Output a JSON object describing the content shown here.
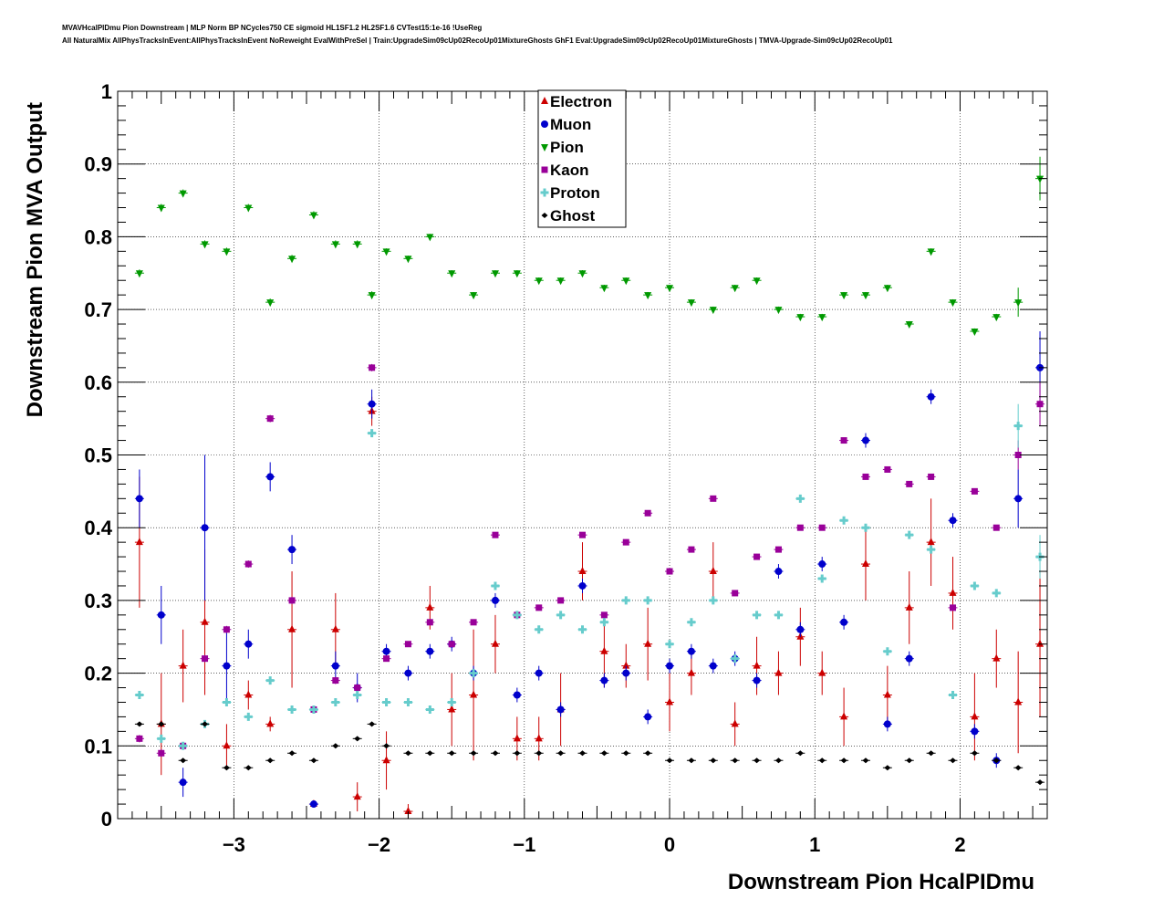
{
  "header": {
    "title_line1": "MVAVHcalPIDmu Pion Downstream | MLP Norm BP NCycles750 CE sigmoid HL1SF1.2 HL2SF1.6 CVTest15:1e-16 !UseReg",
    "title_line2": "All NaturalMix AllPhysTracksInEvent:AllPhysTracksInEvent NoReweight EvalWithPreSel | Train:UpgradeSim09cUp02RecoUp01MixtureGhosts GhF1 Eval:UpgradeSim09cUp02RecoUp01MixtureGhosts | TMVA-Upgrade-Sim09cUp02RecoUp01"
  },
  "chart_data": {
    "type": "scatter",
    "xlabel": "Downstream Pion HcalPIDmu",
    "ylabel": "Downstream Pion MVA Output",
    "xlim": [
      -3.8,
      2.6
    ],
    "ylim": [
      0,
      1
    ],
    "x_ticks": [
      -3,
      -2,
      -1,
      0,
      1,
      2
    ],
    "x_tick_labels": [
      "−3",
      "−2",
      "−1",
      "0",
      "1",
      "2"
    ],
    "y_ticks": [
      0,
      0.1,
      0.2,
      0.3,
      0.4,
      0.5,
      0.6,
      0.7,
      0.8,
      0.9,
      1
    ],
    "y_tick_labels": [
      "0",
      "0.1",
      "0.2",
      "0.3",
      "0.4",
      "0.5",
      "0.6",
      "0.7",
      "0.8",
      "0.9",
      "1"
    ],
    "grid": true,
    "legend_position": "top-center",
    "series": [
      {
        "name": "Electron",
        "color": "#cc0000",
        "marker": "triangle-up",
        "x": [
          -3.65,
          -3.5,
          -3.35,
          -3.2,
          -3.05,
          -2.9,
          -2.75,
          -2.6,
          -2.45,
          -2.3,
          -2.15,
          -2.05,
          -1.95,
          -1.8,
          -1.65,
          -1.5,
          -1.35,
          -1.2,
          -1.05,
          -0.9,
          -0.75,
          -0.6,
          -0.45,
          -0.3,
          -0.15,
          0,
          0.15,
          0.3,
          0.45,
          0.6,
          0.75,
          0.9,
          1.05,
          1.2,
          1.35,
          1.5,
          1.65,
          1.8,
          1.95,
          2.1,
          2.25,
          2.4,
          2.55
        ],
        "y": [
          0.38,
          0.13,
          0.21,
          0.27,
          0.1,
          0.17,
          0.13,
          0.26,
          0.02,
          0.26,
          0.03,
          0.56,
          0.08,
          0.01,
          0.29,
          0.15,
          0.17,
          0.24,
          0.11,
          0.11,
          0.15,
          0.34,
          0.23,
          0.21,
          0.24,
          0.16,
          0.2,
          0.34,
          0.13,
          0.21,
          0.2,
          0.25,
          0.2,
          0.14,
          0.35,
          0.17,
          0.29,
          0.38,
          0.31,
          0.14,
          0.22,
          0.16,
          0.24
        ],
        "err": [
          0.09,
          0.07,
          0.05,
          0.1,
          0.03,
          0.02,
          0.01,
          0.08,
          0.005,
          0.05,
          0.02,
          0.02,
          0.04,
          0.01,
          0.03,
          0.05,
          0.09,
          0.04,
          0.03,
          0.03,
          0.05,
          0.04,
          0.05,
          0.03,
          0.05,
          0.04,
          0.03,
          0.04,
          0.03,
          0.04,
          0.03,
          0.04,
          0.03,
          0.04,
          0.05,
          0.04,
          0.05,
          0.06,
          0.05,
          0.06,
          0.04,
          0.07,
          0.1
        ]
      },
      {
        "name": "Muon",
        "color": "#0000cc",
        "marker": "circle",
        "x": [
          -3.65,
          -3.5,
          -3.35,
          -3.2,
          -3.05,
          -2.9,
          -2.75,
          -2.6,
          -2.45,
          -2.3,
          -2.15,
          -2.05,
          -1.95,
          -1.8,
          -1.65,
          -1.5,
          -1.35,
          -1.2,
          -1.05,
          -0.9,
          -0.75,
          -0.6,
          -0.45,
          -0.3,
          -0.15,
          0,
          0.15,
          0.3,
          0.45,
          0.6,
          0.75,
          0.9,
          1.05,
          1.2,
          1.35,
          1.5,
          1.65,
          1.8,
          1.95,
          2.1,
          2.25,
          2.4,
          2.55
        ],
        "y": [
          0.44,
          0.28,
          0.05,
          0.4,
          0.21,
          0.24,
          0.47,
          0.37,
          0.02,
          0.21,
          0.18,
          0.57,
          0.23,
          0.2,
          0.23,
          0.24,
          0.2,
          0.3,
          0.17,
          0.2,
          0.15,
          0.32,
          0.19,
          0.2,
          0.14,
          0.21,
          0.23,
          0.21,
          0.22,
          0.19,
          0.34,
          0.26,
          0.35,
          0.27,
          0.52,
          0.13,
          0.22,
          0.58,
          0.41,
          0.12,
          0.08,
          0.44,
          0.62
        ],
        "err": [
          0.04,
          0.04,
          0.02,
          0.1,
          0.05,
          0.02,
          0.02,
          0.02,
          0.004,
          0.02,
          0.02,
          0.02,
          0.01,
          0.01,
          0.01,
          0.01,
          0.01,
          0.01,
          0.01,
          0.01,
          0.01,
          0.01,
          0.01,
          0.01,
          0.01,
          0.01,
          0.01,
          0.01,
          0.01,
          0.01,
          0.01,
          0.01,
          0.01,
          0.01,
          0.01,
          0.01,
          0.01,
          0.01,
          0.01,
          0.01,
          0.01,
          0.04,
          0.05
        ]
      },
      {
        "name": "Pion",
        "color": "#009900",
        "marker": "triangle-down",
        "x": [
          -3.65,
          -3.5,
          -3.35,
          -3.2,
          -3.05,
          -2.9,
          -2.75,
          -2.6,
          -2.45,
          -2.3,
          -2.15,
          -2.05,
          -1.95,
          -1.8,
          -1.65,
          -1.5,
          -1.35,
          -1.2,
          -1.05,
          -0.9,
          -0.75,
          -0.6,
          -0.45,
          -0.3,
          -0.15,
          0,
          0.15,
          0.3,
          0.45,
          0.6,
          0.75,
          0.9,
          1.05,
          1.2,
          1.35,
          1.5,
          1.65,
          1.8,
          1.95,
          2.1,
          2.25,
          2.4,
          2.55
        ],
        "y": [
          0.75,
          0.84,
          0.86,
          0.79,
          0.78,
          0.84,
          0.71,
          0.77,
          0.83,
          0.79,
          0.79,
          0.72,
          0.78,
          0.77,
          0.8,
          0.75,
          0.72,
          0.75,
          0.75,
          0.74,
          0.74,
          0.75,
          0.73,
          0.74,
          0.72,
          0.73,
          0.71,
          0.7,
          0.73,
          0.74,
          0.7,
          0.69,
          0.69,
          0.72,
          0.72,
          0.73,
          0.68,
          0.78,
          0.71,
          0.67,
          0.69,
          0.71,
          0.88
        ],
        "err": [
          0.005,
          0.005,
          0.005,
          0.005,
          0.005,
          0.005,
          0.005,
          0.005,
          0.005,
          0.005,
          0.005,
          0.005,
          0.004,
          0.004,
          0.004,
          0.004,
          0.004,
          0.004,
          0.004,
          0.004,
          0.004,
          0.004,
          0.004,
          0.004,
          0.004,
          0.004,
          0.004,
          0.004,
          0.004,
          0.004,
          0.004,
          0.004,
          0.004,
          0.004,
          0.004,
          0.004,
          0.004,
          0.004,
          0.004,
          0.004,
          0.004,
          0.02,
          0.03
        ]
      },
      {
        "name": "Kaon",
        "color": "#990099",
        "marker": "square",
        "x": [
          -3.65,
          -3.5,
          -3.35,
          -3.2,
          -3.05,
          -2.9,
          -2.75,
          -2.6,
          -2.45,
          -2.3,
          -2.15,
          -2.05,
          -1.95,
          -1.8,
          -1.65,
          -1.5,
          -1.35,
          -1.2,
          -1.05,
          -0.9,
          -0.75,
          -0.6,
          -0.45,
          -0.3,
          -0.15,
          0,
          0.15,
          0.3,
          0.45,
          0.6,
          0.75,
          0.9,
          1.05,
          1.2,
          1.35,
          1.5,
          1.65,
          1.8,
          1.95,
          2.1,
          2.25,
          2.4,
          2.55
        ],
        "y": [
          0.11,
          0.09,
          0.1,
          0.22,
          0.26,
          0.35,
          0.55,
          0.3,
          0.15,
          0.19,
          0.18,
          0.62,
          0.22,
          0.24,
          0.27,
          0.24,
          0.27,
          0.39,
          0.28,
          0.29,
          0.3,
          0.39,
          0.28,
          0.38,
          0.42,
          0.34,
          0.37,
          0.44,
          0.31,
          0.36,
          0.37,
          0.4,
          0.4,
          0.52,
          0.47,
          0.48,
          0.46,
          0.47,
          0.29,
          0.45,
          0.4,
          0.5,
          0.57
        ],
        "err": [
          0.005,
          0.005,
          0.005,
          0.005,
          0.005,
          0.005,
          0.005,
          0.005,
          0.005,
          0.005,
          0.005,
          0.005,
          0.004,
          0.004,
          0.004,
          0.004,
          0.004,
          0.004,
          0.004,
          0.004,
          0.004,
          0.004,
          0.004,
          0.004,
          0.004,
          0.004,
          0.004,
          0.004,
          0.004,
          0.004,
          0.004,
          0.004,
          0.004,
          0.004,
          0.004,
          0.004,
          0.004,
          0.004,
          0.004,
          0.004,
          0.004,
          0.02,
          0.03
        ]
      },
      {
        "name": "Proton",
        "color": "#66cccc",
        "marker": "cross",
        "x": [
          -3.65,
          -3.5,
          -3.35,
          -3.2,
          -3.05,
          -2.9,
          -2.75,
          -2.6,
          -2.45,
          -2.3,
          -2.15,
          -2.05,
          -1.95,
          -1.8,
          -1.65,
          -1.5,
          -1.35,
          -1.2,
          -1.05,
          -0.9,
          -0.75,
          -0.6,
          -0.45,
          -0.3,
          -0.15,
          0,
          0.15,
          0.3,
          0.45,
          0.6,
          0.75,
          0.9,
          1.05,
          1.2,
          1.35,
          1.5,
          1.65,
          1.8,
          1.95,
          2.1,
          2.25,
          2.4,
          2.55
        ],
        "y": [
          0.17,
          0.11,
          0.1,
          0.13,
          0.16,
          0.14,
          0.19,
          0.15,
          0.15,
          0.16,
          0.17,
          0.53,
          0.16,
          0.16,
          0.15,
          0.16,
          0.2,
          0.32,
          0.28,
          0.26,
          0.28,
          0.26,
          0.27,
          0.3,
          0.3,
          0.24,
          0.27,
          0.3,
          0.22,
          0.28,
          0.28,
          0.44,
          0.33,
          0.41,
          0.4,
          0.23,
          0.39,
          0.37,
          0.17,
          0.32,
          0.31,
          0.54,
          0.36
        ],
        "err": [
          0.005,
          0.005,
          0.005,
          0.005,
          0.005,
          0.005,
          0.005,
          0.005,
          0.005,
          0.005,
          0.005,
          0.005,
          0.004,
          0.004,
          0.004,
          0.004,
          0.004,
          0.004,
          0.004,
          0.004,
          0.004,
          0.004,
          0.004,
          0.004,
          0.004,
          0.004,
          0.004,
          0.004,
          0.004,
          0.004,
          0.004,
          0.004,
          0.004,
          0.004,
          0.004,
          0.004,
          0.004,
          0.004,
          0.004,
          0.004,
          0.004,
          0.03,
          0.03
        ]
      },
      {
        "name": "Ghost",
        "color": "#000000",
        "marker": "diamond",
        "x": [
          -3.65,
          -3.5,
          -3.35,
          -3.2,
          -3.05,
          -2.9,
          -2.75,
          -2.6,
          -2.45,
          -2.3,
          -2.15,
          -2.05,
          -1.95,
          -1.8,
          -1.65,
          -1.5,
          -1.35,
          -1.2,
          -1.05,
          -0.9,
          -0.75,
          -0.6,
          -0.45,
          -0.3,
          -0.15,
          0,
          0.15,
          0.3,
          0.45,
          0.6,
          0.75,
          0.9,
          1.05,
          1.2,
          1.35,
          1.5,
          1.65,
          1.8,
          1.95,
          2.1,
          2.25,
          2.4,
          2.55
        ],
        "y": [
          0.13,
          0.13,
          0.08,
          0.13,
          0.07,
          0.07,
          0.08,
          0.09,
          0.08,
          0.1,
          0.11,
          0.13,
          0.1,
          0.09,
          0.09,
          0.09,
          0.09,
          0.09,
          0.09,
          0.09,
          0.09,
          0.09,
          0.09,
          0.09,
          0.09,
          0.08,
          0.08,
          0.08,
          0.08,
          0.08,
          0.08,
          0.09,
          0.08,
          0.08,
          0.08,
          0.07,
          0.08,
          0.09,
          0.08,
          0.09,
          0.08,
          0.07,
          0.05
        ],
        "err": [
          0.003,
          0.003,
          0.003,
          0.003,
          0.003,
          0.003,
          0.003,
          0.003,
          0.003,
          0.003,
          0.003,
          0.003,
          0.003,
          0.003,
          0.003,
          0.003,
          0.003,
          0.003,
          0.003,
          0.003,
          0.003,
          0.003,
          0.003,
          0.003,
          0.003,
          0.003,
          0.003,
          0.003,
          0.003,
          0.003,
          0.003,
          0.003,
          0.003,
          0.003,
          0.003,
          0.003,
          0.003,
          0.003,
          0.003,
          0.003,
          0.003,
          0.003,
          0.003
        ]
      }
    ]
  }
}
